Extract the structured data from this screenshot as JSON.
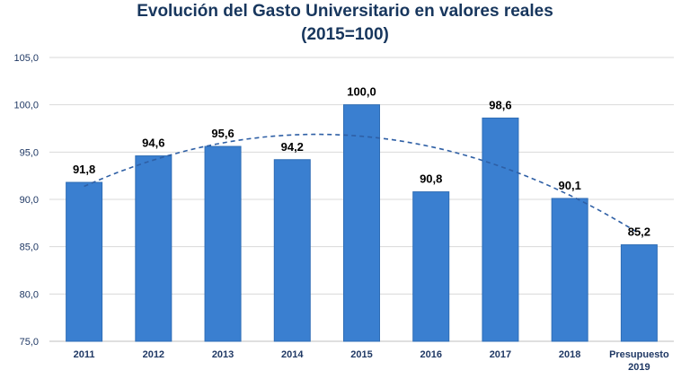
{
  "chart_data": {
    "type": "bar",
    "title": "Evolución del Gasto Universitario en valores reales",
    "subtitle": "(2015=100)",
    "categories": [
      "2011",
      "2012",
      "2013",
      "2014",
      "2015",
      "2016",
      "2017",
      "2018",
      [
        "Presupuesto",
        "2019"
      ]
    ],
    "values": [
      91.8,
      94.6,
      95.6,
      94.2,
      100.0,
      90.8,
      98.6,
      90.1,
      85.2
    ],
    "data_labels": [
      "91,8",
      "94,6",
      "95,6",
      "94,2",
      "100,0",
      "90,8",
      "98,6",
      "90,1",
      "85,2"
    ],
    "yticks": [
      "75,0",
      "80,0",
      "85,0",
      "90,0",
      "95,0",
      "100,0",
      "105,0"
    ],
    "ytick_values": [
      75,
      80,
      85,
      90,
      95,
      100,
      105
    ],
    "ylim": [
      75,
      105
    ],
    "xlabel": "",
    "ylabel": "",
    "grid": true,
    "trendline": {
      "type": "polynomial",
      "style": "dashed"
    },
    "colors": {
      "bar": "#3a7fd0",
      "bar_edge": "#2f6db5",
      "trend": "#2e5fa5",
      "grid": "#d9d9d9",
      "title": "#17365d"
    }
  }
}
